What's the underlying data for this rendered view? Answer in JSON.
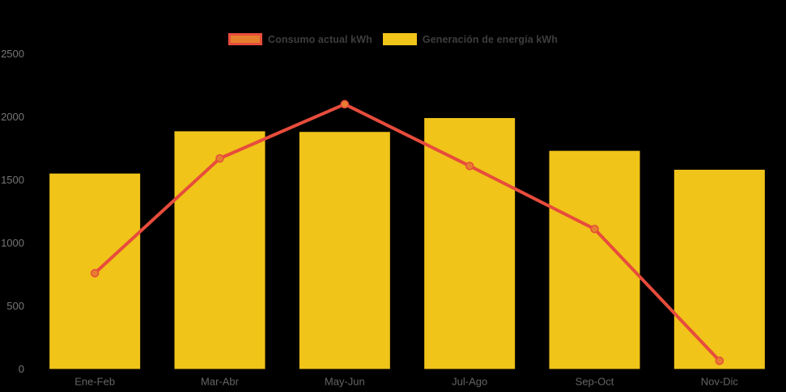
{
  "chart_data": {
    "type": "combo",
    "categories": [
      "Ene-Feb",
      "Mar-Abr",
      "May-Jun",
      "Jul-Ago",
      "Sep-Oct",
      "Nov-Dic"
    ],
    "series": [
      {
        "name": "Consumo actual kWh",
        "type": "line",
        "line_color": "#E74C3C",
        "point_color": "#E67E2E",
        "values": [
          760,
          1670,
          2100,
          1610,
          1110,
          65
        ]
      },
      {
        "name": "Generación de energía kWh",
        "type": "bar",
        "bar_color": "#F0C419",
        "values": [
          1550,
          1885,
          1880,
          1990,
          1730,
          1580
        ]
      }
    ],
    "title": "",
    "xlabel": "",
    "ylabel": "",
    "ylim": [
      0,
      2500
    ],
    "yticks": [
      0,
      500,
      1000,
      1500,
      2000,
      2500
    ],
    "grid": false,
    "legend_position": "top",
    "background_color": "#000000",
    "ytick_color": "#767676",
    "xtick_color": "#646464",
    "legend_text_color": "#3D3D3D"
  }
}
